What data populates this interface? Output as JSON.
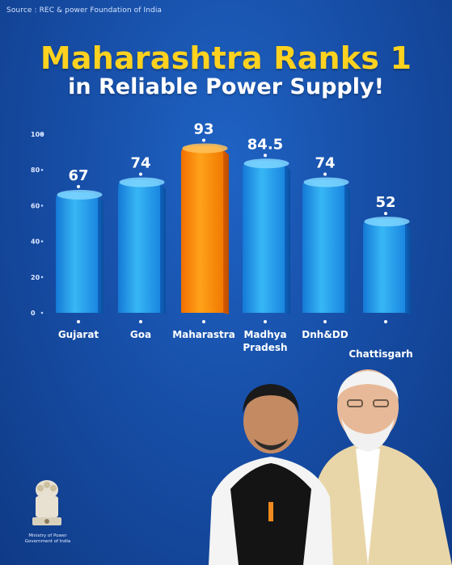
{
  "source_note": "Source : REC & power Foundation of India",
  "title": "Maharashtra Ranks 1",
  "subtitle": "in Reliable Power Supply!",
  "emblem_caption": "Ministry of Power Government of India",
  "colors": {
    "background": "#174fa8",
    "title": "#ffd21f",
    "bar_blue": "#2aa6ef",
    "bar_highlight": "#ff8a00"
  },
  "chart_data": {
    "type": "bar",
    "title": "",
    "xlabel": "",
    "ylabel": "",
    "ylim": [
      0,
      100
    ],
    "yticks": [
      0,
      20,
      40,
      60,
      80,
      100
    ],
    "grid": false,
    "categories": [
      "Gujarat",
      "Goa",
      "Maharastra",
      "Madhya Pradesh",
      "Dnh&DD",
      "Chattisgarh"
    ],
    "values": [
      67,
      74,
      93,
      84.5,
      74,
      52
    ],
    "value_labels": [
      "67",
      "74",
      "93",
      "84.5",
      "74",
      "52"
    ],
    "highlight": "Maharastra"
  }
}
